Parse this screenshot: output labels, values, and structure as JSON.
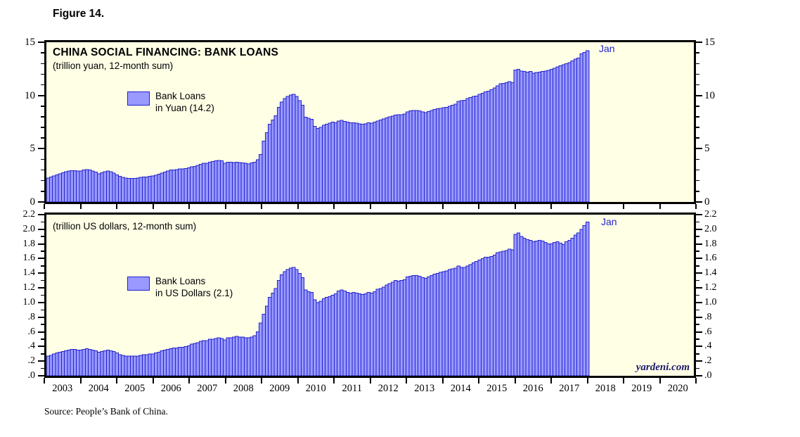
{
  "figure_label": "Figure 14.",
  "source_note": "Source: People’s Bank of China.",
  "branding": "yardeni.com",
  "colors": {
    "bar_fill": "#9999FF",
    "bar_stroke": "#2222CC",
    "panel_background": "#FFFFE6",
    "annotation_blue": "#2323CC",
    "branding_navy": "#191970",
    "frame_black": "#000000"
  },
  "panels": [
    {
      "title": "CHINA SOCIAL FINANCING: BANK LOANS",
      "subtitle": "(trillion yuan, 12-month sum)",
      "legend_line1": "Bank Loans",
      "legend_line2": "in Yuan (14.2)",
      "annotation": "Jan"
    },
    {
      "title": "",
      "subtitle": "(trillion US dollars, 12-month sum)",
      "legend_line1": "Bank Loans",
      "legend_line2": "in US Dollars (2.1)",
      "annotation": "Jan"
    }
  ],
  "x_axis": {
    "year_labels": [
      "2003",
      "2004",
      "2005",
      "2006",
      "2007",
      "2008",
      "2009",
      "2010",
      "2011",
      "2012",
      "2013",
      "2014",
      "2015",
      "2016",
      "2017",
      "2018",
      "2019",
      "2020"
    ],
    "domain": [
      2003,
      2021
    ]
  },
  "chart_data": [
    {
      "type": "bar",
      "title": "CHINA SOCIAL FINANCING: BANK LOANS",
      "ylabel": "trillion yuan, 12-month sum",
      "x_start": "2003-01",
      "x_end": "2018-01",
      "frequency": "monthly",
      "ylim": [
        0,
        15
      ],
      "y_major_step": 5,
      "y_minor_step": 1,
      "y_tick_labels_top_first": [
        "15",
        "10",
        "5",
        "0"
      ],
      "last_value_label": "Jan 2018 = 14.2",
      "values": [
        2.25,
        2.35,
        2.45,
        2.55,
        2.65,
        2.75,
        2.85,
        2.9,
        2.95,
        2.95,
        2.9,
        2.9,
        3.0,
        3.05,
        3.0,
        2.9,
        2.8,
        2.65,
        2.75,
        2.85,
        2.9,
        2.85,
        2.7,
        2.55,
        2.4,
        2.3,
        2.25,
        2.2,
        2.2,
        2.2,
        2.25,
        2.3,
        2.35,
        2.35,
        2.4,
        2.45,
        2.5,
        2.6,
        2.7,
        2.8,
        2.9,
        3.0,
        3.0,
        3.05,
        3.1,
        3.1,
        3.15,
        3.2,
        3.3,
        3.35,
        3.45,
        3.55,
        3.65,
        3.65,
        3.75,
        3.8,
        3.85,
        3.9,
        3.85,
        3.65,
        3.75,
        3.72,
        3.7,
        3.74,
        3.7,
        3.66,
        3.62,
        3.58,
        3.66,
        3.74,
        3.95,
        4.45,
        5.7,
        6.5,
        7.3,
        7.7,
        8.1,
        8.9,
        9.4,
        9.7,
        9.9,
        10.05,
        10.1,
        9.9,
        9.5,
        9.1,
        7.95,
        7.85,
        7.75,
        7.1,
        6.9,
        7.0,
        7.2,
        7.3,
        7.4,
        7.5,
        7.45,
        7.6,
        7.65,
        7.55,
        7.5,
        7.45,
        7.45,
        7.4,
        7.35,
        7.3,
        7.35,
        7.45,
        7.4,
        7.5,
        7.6,
        7.7,
        7.8,
        7.9,
        8.0,
        8.05,
        8.15,
        8.2,
        8.2,
        8.25,
        8.45,
        8.55,
        8.6,
        8.6,
        8.55,
        8.45,
        8.4,
        8.5,
        8.6,
        8.7,
        8.75,
        8.8,
        8.85,
        8.9,
        9.0,
        9.1,
        9.2,
        9.45,
        9.5,
        9.55,
        9.7,
        9.8,
        9.9,
        9.95,
        10.1,
        10.2,
        10.35,
        10.4,
        10.55,
        10.7,
        10.9,
        11.1,
        11.15,
        11.2,
        11.3,
        11.2,
        12.4,
        12.45,
        12.3,
        12.25,
        12.2,
        12.25,
        12.1,
        12.15,
        12.2,
        12.25,
        12.3,
        12.35,
        12.45,
        12.55,
        12.7,
        12.8,
        12.9,
        13.0,
        13.1,
        13.25,
        13.4,
        13.5,
        13.9,
        14.05,
        14.2
      ]
    },
    {
      "type": "bar",
      "title": "CHINA SOCIAL FINANCING: BANK LOANS",
      "ylabel": "trillion US dollars, 12-month sum",
      "x_start": "2003-01",
      "x_end": "2018-01",
      "frequency": "monthly",
      "ylim": [
        0,
        2.2
      ],
      "y_major_step": 0.2,
      "y_minor_step": 0.1,
      "y_tick_labels_top_first": [
        "2.2",
        "2.0",
        "1.8",
        "1.6",
        "1.4",
        "1.2",
        "1.0",
        ".8",
        ".6",
        ".4",
        ".2",
        ".0"
      ],
      "last_value_label": "Jan 2018 = 2.1",
      "values": [
        0.27,
        0.28,
        0.3,
        0.31,
        0.32,
        0.33,
        0.34,
        0.35,
        0.36,
        0.36,
        0.35,
        0.35,
        0.36,
        0.37,
        0.36,
        0.35,
        0.34,
        0.32,
        0.33,
        0.34,
        0.35,
        0.34,
        0.33,
        0.31,
        0.29,
        0.28,
        0.27,
        0.27,
        0.27,
        0.27,
        0.27,
        0.28,
        0.29,
        0.29,
        0.3,
        0.3,
        0.31,
        0.32,
        0.34,
        0.35,
        0.36,
        0.37,
        0.38,
        0.38,
        0.39,
        0.39,
        0.4,
        0.41,
        0.43,
        0.44,
        0.45,
        0.47,
        0.48,
        0.48,
        0.5,
        0.5,
        0.51,
        0.52,
        0.51,
        0.49,
        0.52,
        0.52,
        0.53,
        0.54,
        0.53,
        0.53,
        0.52,
        0.52,
        0.53,
        0.55,
        0.6,
        0.72,
        0.84,
        0.95,
        1.07,
        1.13,
        1.19,
        1.3,
        1.38,
        1.42,
        1.45,
        1.47,
        1.48,
        1.45,
        1.4,
        1.34,
        1.17,
        1.15,
        1.14,
        1.04,
        1.0,
        1.02,
        1.05,
        1.07,
        1.08,
        1.1,
        1.12,
        1.16,
        1.17,
        1.16,
        1.14,
        1.13,
        1.14,
        1.13,
        1.12,
        1.11,
        1.12,
        1.14,
        1.13,
        1.15,
        1.18,
        1.19,
        1.21,
        1.24,
        1.26,
        1.28,
        1.3,
        1.29,
        1.3,
        1.31,
        1.35,
        1.36,
        1.37,
        1.37,
        1.36,
        1.34,
        1.33,
        1.35,
        1.37,
        1.39,
        1.4,
        1.41,
        1.42,
        1.43,
        1.45,
        1.46,
        1.47,
        1.5,
        1.48,
        1.48,
        1.5,
        1.52,
        1.54,
        1.56,
        1.58,
        1.6,
        1.62,
        1.62,
        1.63,
        1.65,
        1.68,
        1.69,
        1.7,
        1.71,
        1.73,
        1.72,
        1.93,
        1.95,
        1.9,
        1.88,
        1.86,
        1.85,
        1.83,
        1.84,
        1.85,
        1.84,
        1.82,
        1.8,
        1.8,
        1.82,
        1.83,
        1.81,
        1.79,
        1.83,
        1.85,
        1.88,
        1.92,
        1.95,
        2.0,
        2.05,
        2.1
      ]
    }
  ]
}
